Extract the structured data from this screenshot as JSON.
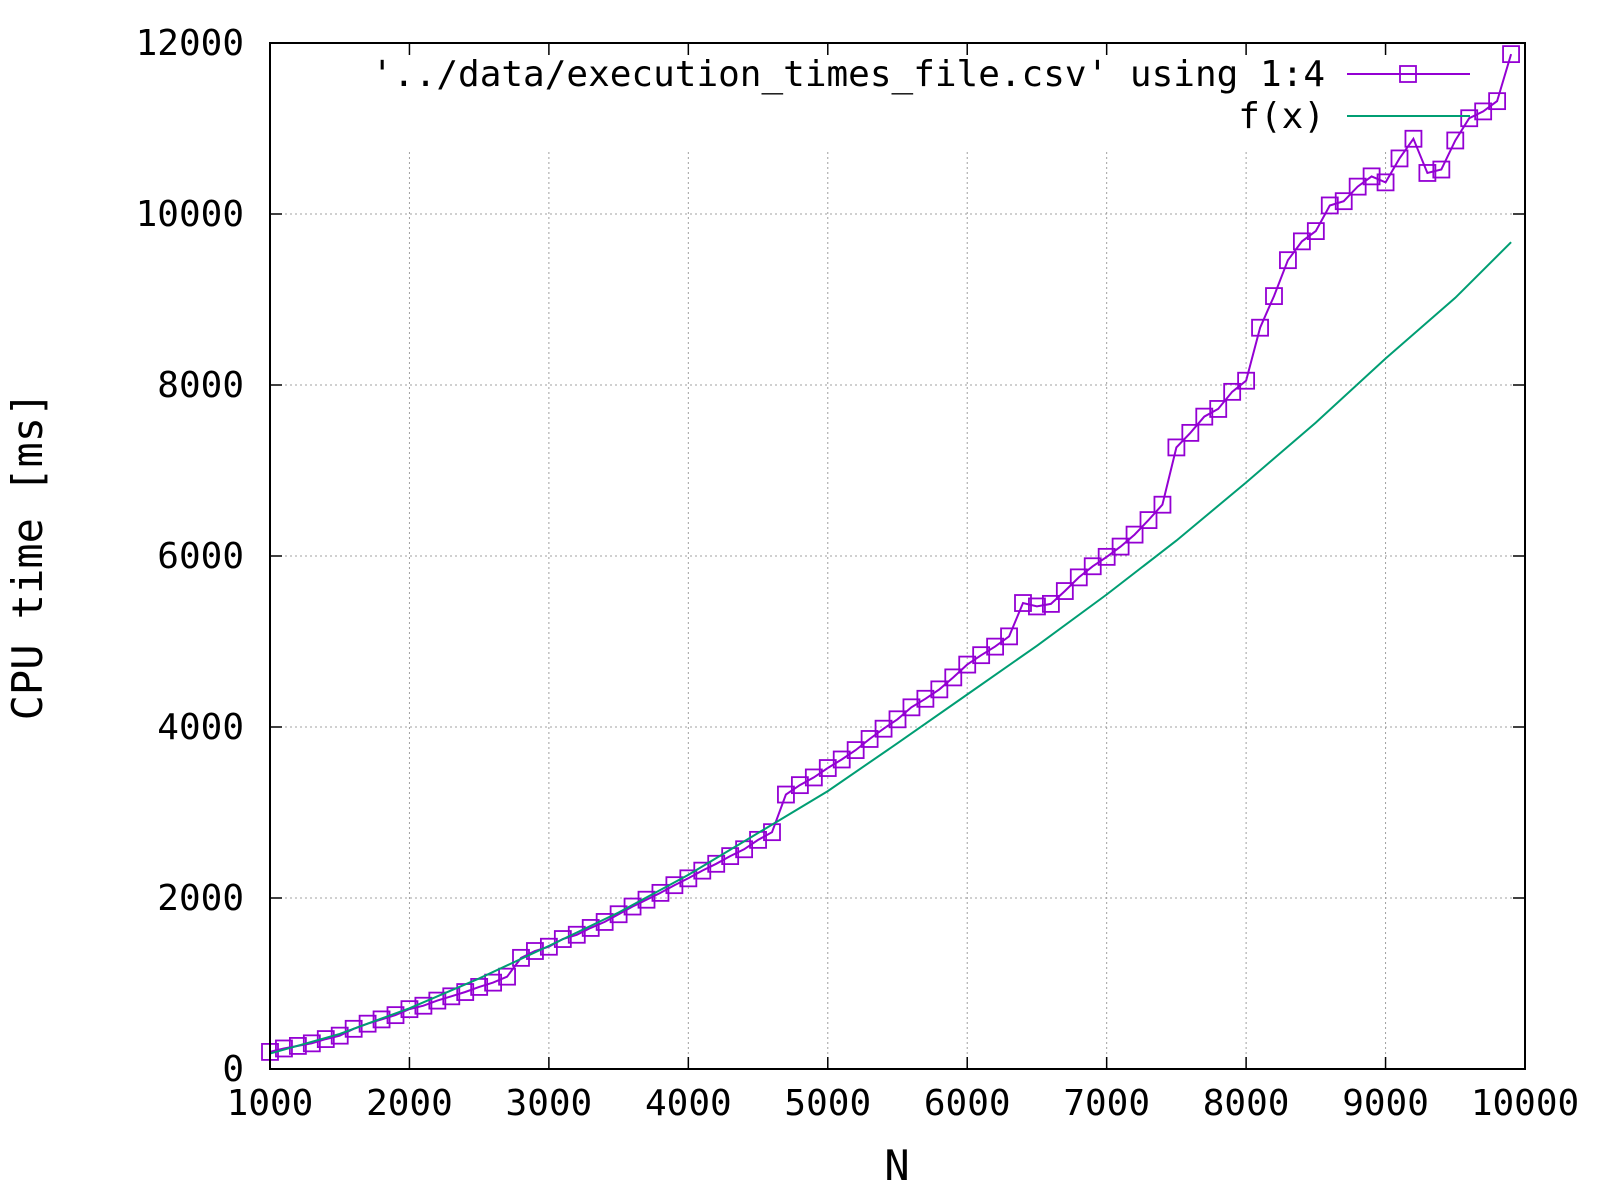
{
  "chart_data": {
    "type": "line",
    "xlabel": "N",
    "ylabel": "CPU time [ms]",
    "xlim": [
      1000,
      10000
    ],
    "ylim": [
      0,
      12000
    ],
    "x_ticks": [
      1000,
      2000,
      3000,
      4000,
      5000,
      6000,
      7000,
      8000,
      9000,
      10000
    ],
    "y_ticks": [
      0,
      2000,
      4000,
      6000,
      8000,
      10000,
      12000
    ],
    "grid": true,
    "legend_position": "top-right",
    "series": [
      {
        "name": "'../data/execution_times_file.csv' using 1:4",
        "color": "#9400d3",
        "marker": "open-square",
        "x": [
          1000,
          1100,
          1200,
          1300,
          1400,
          1500,
          1600,
          1700,
          1800,
          1900,
          2000,
          2100,
          2200,
          2300,
          2400,
          2500,
          2600,
          2700,
          2800,
          2900,
          3000,
          3100,
          3200,
          3300,
          3400,
          3500,
          3600,
          3700,
          3800,
          3900,
          4000,
          4100,
          4200,
          4300,
          4400,
          4500,
          4600,
          4700,
          4800,
          4900,
          5000,
          5100,
          5200,
          5300,
          5400,
          5500,
          5600,
          5700,
          5800,
          5900,
          6000,
          6100,
          6200,
          6300,
          6400,
          6500,
          6600,
          6700,
          6800,
          6900,
          7000,
          7100,
          7200,
          7300,
          7400,
          7500,
          7600,
          7700,
          7800,
          7900,
          8000,
          8100,
          8200,
          8300,
          8400,
          8500,
          8600,
          8700,
          8800,
          8900,
          9000,
          9100,
          9200,
          9300,
          9400,
          9500,
          9600,
          9700,
          9800,
          9900
        ],
        "y": [
          200,
          240,
          270,
          300,
          350,
          390,
          470,
          530,
          580,
          630,
          700,
          740,
          800,
          850,
          900,
          960,
          1010,
          1080,
          1300,
          1380,
          1430,
          1520,
          1570,
          1650,
          1720,
          1810,
          1900,
          1980,
          2060,
          2150,
          2230,
          2320,
          2400,
          2490,
          2570,
          2680,
          2770,
          3210,
          3320,
          3410,
          3520,
          3620,
          3730,
          3860,
          3980,
          4090,
          4230,
          4330,
          4440,
          4580,
          4730,
          4840,
          4940,
          5060,
          5450,
          5410,
          5440,
          5590,
          5750,
          5880,
          5990,
          6110,
          6250,
          6420,
          6600,
          7270,
          7440,
          7630,
          7720,
          7920,
          8050,
          8670,
          9040,
          9460,
          9680,
          9800,
          10100,
          10150,
          10320,
          10440,
          10370,
          10650,
          10880,
          10480,
          10520,
          10860,
          11120,
          11200,
          11320,
          11870
        ]
      },
      {
        "name": "f(x)",
        "color": "#009e73",
        "marker": "none",
        "x": [
          1000,
          1500,
          2000,
          2500,
          3000,
          3500,
          4000,
          4500,
          5000,
          5500,
          6000,
          6500,
          7000,
          7500,
          8000,
          8500,
          9000,
          9500,
          9900
        ],
        "y": [
          180,
          410,
          710,
          1060,
          1440,
          1830,
          2270,
          2760,
          3250,
          3810,
          4380,
          4950,
          5550,
          6180,
          6860,
          7560,
          8310,
          9020,
          9670
        ]
      }
    ]
  }
}
